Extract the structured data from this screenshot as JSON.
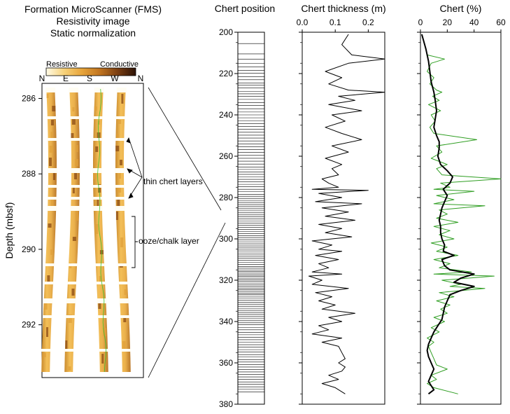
{
  "fms_panel": {
    "title_lines": [
      "Formation MicroScanner (FMS)",
      "Resistivity image",
      "Static normalization"
    ],
    "colorbar": {
      "left_label": "Resistive",
      "right_label": "Conductive",
      "colors": [
        "#fffbe6",
        "#f7d27a",
        "#e7a43a",
        "#c07420",
        "#7a3e12",
        "#2e1206"
      ]
    },
    "orientation_labels": [
      "N",
      "E",
      "S",
      "W",
      "N"
    ],
    "depth_ticks": [
      "286",
      "288",
      "290",
      "292"
    ],
    "ylabel": "Depth (mbsf)",
    "annotations": {
      "thin_chert": "thin chert layers",
      "ooze_chalk": "ooze/chalk layer"
    },
    "colors": {
      "pad_light": "#f5c35a",
      "pad_mid": "#e0a03a",
      "pad_dark": "#8a4a14",
      "bed_white": "#fffdf3",
      "trace": "#35c02a"
    }
  },
  "chart_data": [
    {
      "type": "table",
      "title": "Chert position",
      "ylim": [
        200,
        380
      ],
      "yticks": [
        200,
        220,
        240,
        260,
        280,
        300,
        320,
        340,
        360,
        380
      ],
      "positions": [
        200,
        205.5,
        210.5,
        213,
        215,
        216.8,
        218.4,
        219.9,
        221.5,
        223,
        224.5,
        225.6,
        227,
        228.6,
        229.8,
        231,
        232.5,
        234,
        235.5,
        237,
        238.6,
        240,
        241.4,
        242.8,
        244.2,
        245.6,
        247,
        248.4,
        249.8,
        251.2,
        252.6,
        254,
        255.4,
        256.8,
        258.2,
        259.6,
        261,
        262.4,
        263.8,
        265.2,
        266.4,
        267.6,
        268.8,
        270,
        271.2,
        272.4,
        273.6,
        274.8,
        276,
        277.2,
        278.4,
        279.4,
        280.4,
        281.4,
        282.4,
        283.4,
        284.4,
        285.4,
        286.4,
        287.4,
        288.4,
        289.4,
        290.4,
        291.4,
        292.4,
        293.4,
        294.4,
        295.4,
        296.4,
        297.4,
        298.4,
        299.4,
        300.4,
        301.4,
        302.4,
        303.4,
        304.4,
        305.4,
        306.4,
        307.4,
        308.4,
        309.4,
        310.4,
        311.4,
        312.4,
        313.4,
        314.2,
        315,
        315.8,
        316.6,
        317.4,
        318.2,
        319,
        319.8,
        320.6,
        321.4,
        322.2,
        323,
        323.8,
        324.6,
        325.4,
        326.2,
        327,
        327.8,
        328.6,
        329.6,
        330.6,
        331.6,
        332.6,
        333.6,
        334.6,
        335.6,
        336.6,
        337.6,
        338.6,
        339.6,
        340.6,
        341.6,
        342.8,
        344,
        345.2,
        346.4,
        347.6,
        348.8,
        350,
        351.2,
        352.4,
        353.6,
        354.8,
        356,
        357.2,
        358.4,
        359.6,
        360.8,
        362,
        363.2,
        364.4,
        365.6,
        366.8,
        368,
        369.2,
        370.4,
        371.6,
        372.8,
        374
      ]
    },
    {
      "type": "line",
      "title": "Chert thickness (m)",
      "xlim": [
        0,
        0.25
      ],
      "ylim": [
        200,
        380
      ],
      "xticks": [
        "0.0",
        "0.1",
        "0.2"
      ],
      "yticks": [
        200,
        220,
        240,
        260,
        280,
        300,
        320,
        340,
        360,
        380
      ],
      "series": [
        {
          "color": "#000000",
          "points": [
            [
              0.14,
              201
            ],
            [
              0.12,
              206
            ],
            [
              0.15,
              211
            ],
            [
              0.25,
              213
            ],
            [
              0.14,
              215
            ],
            [
              0.07,
              219
            ],
            [
              0.12,
              222
            ],
            [
              0.08,
              225
            ],
            [
              0.14,
              228
            ],
            [
              0.25,
              229
            ],
            [
              0.11,
              231
            ],
            [
              0.16,
              233
            ],
            [
              0.08,
              235
            ],
            [
              0.18,
              238
            ],
            [
              0.09,
              240
            ],
            [
              0.13,
              243
            ],
            [
              0.07,
              246
            ],
            [
              0.12,
              249
            ],
            [
              0.18,
              252
            ],
            [
              0.09,
              255
            ],
            [
              0.14,
              258
            ],
            [
              0.07,
              261
            ],
            [
              0.12,
              264
            ],
            [
              0.09,
              266
            ],
            [
              0.11,
              269
            ],
            [
              0.06,
              271
            ],
            [
              0.08,
              273
            ],
            [
              0.11,
              275
            ],
            [
              0.03,
              276
            ],
            [
              0.2,
              276.5
            ],
            [
              0.05,
              278
            ],
            [
              0.12,
              280
            ],
            [
              0.04,
              282
            ],
            [
              0.18,
              283
            ],
            [
              0.06,
              285
            ],
            [
              0.14,
              287
            ],
            [
              0.07,
              289
            ],
            [
              0.16,
              291
            ],
            [
              0.05,
              293
            ],
            [
              0.12,
              295
            ],
            [
              0.07,
              297
            ],
            [
              0.15,
              299
            ],
            [
              0.03,
              301
            ],
            [
              0.09,
              303
            ],
            [
              0.05,
              305
            ],
            [
              0.12,
              306
            ],
            [
              0.04,
              308
            ],
            [
              0.11,
              310
            ],
            [
              0.05,
              312
            ],
            [
              0.08,
              314
            ],
            [
              0.03,
              316
            ],
            [
              0.12,
              317
            ],
            [
              0.02,
              318
            ],
            [
              0.06,
              320
            ],
            [
              0.03,
              322
            ],
            [
              0.14,
              324
            ],
            [
              0.04,
              326
            ],
            [
              0.09,
              328
            ],
            [
              0.05,
              330
            ],
            [
              0.1,
              332
            ],
            [
              0.06,
              334
            ],
            [
              0.16,
              336
            ],
            [
              0.08,
              338
            ],
            [
              0.12,
              340
            ],
            [
              0.05,
              342
            ],
            [
              0.08,
              344
            ],
            [
              0.03,
              346
            ],
            [
              0.12,
              348
            ],
            [
              0.06,
              350
            ],
            [
              0.11,
              352
            ],
            [
              0.12,
              355
            ],
            [
              0.13,
              358
            ],
            [
              0.11,
              360
            ],
            [
              0.13,
              362
            ],
            [
              0.12,
              364
            ],
            [
              0.08,
              366
            ],
            [
              0.11,
              368
            ],
            [
              0.06,
              370
            ],
            [
              0.1,
              372
            ],
            [
              0.13,
              375
            ]
          ]
        }
      ]
    },
    {
      "type": "line",
      "title": "Chert (%)",
      "xlim": [
        0,
        60
      ],
      "ylim": [
        200,
        380
      ],
      "xticks": [
        "0",
        "20",
        "40",
        "60"
      ],
      "yticks": [
        200,
        220,
        240,
        260,
        280,
        300,
        320,
        340,
        360,
        380
      ],
      "series": [
        {
          "color": "#2f9e22",
          "points": [
            [
              1,
              201
            ],
            [
              3,
              206
            ],
            [
              5,
              211
            ],
            [
              18,
              213
            ],
            [
              8,
              215
            ],
            [
              5,
              219
            ],
            [
              10,
              222
            ],
            [
              7,
              225
            ],
            [
              12,
              228
            ],
            [
              16,
              229
            ],
            [
              9,
              231
            ],
            [
              14,
              233
            ],
            [
              6,
              235
            ],
            [
              15,
              238
            ],
            [
              8,
              240
            ],
            [
              11,
              243
            ],
            [
              7,
              246
            ],
            [
              10,
              249
            ],
            [
              42,
              252
            ],
            [
              12,
              255
            ],
            [
              16,
              258
            ],
            [
              8,
              261
            ],
            [
              20,
              264
            ],
            [
              12,
              266
            ],
            [
              16,
              269
            ],
            [
              60,
              271
            ],
            [
              15,
              273
            ],
            [
              22,
              275
            ],
            [
              10,
              276
            ],
            [
              40,
              277
            ],
            [
              12,
              279
            ],
            [
              25,
              281
            ],
            [
              10,
              283
            ],
            [
              48,
              284
            ],
            [
              14,
              286
            ],
            [
              20,
              288
            ],
            [
              12,
              290
            ],
            [
              28,
              292
            ],
            [
              10,
              294
            ],
            [
              22,
              296
            ],
            [
              14,
              298
            ],
            [
              25,
              300
            ],
            [
              8,
              302
            ],
            [
              20,
              304
            ],
            [
              12,
              306
            ],
            [
              28,
              308
            ],
            [
              10,
              310
            ],
            [
              22,
              312
            ],
            [
              14,
              314
            ],
            [
              38,
              316
            ],
            [
              10,
              317
            ],
            [
              55,
              318
            ],
            [
              16,
              320
            ],
            [
              30,
              322
            ],
            [
              22,
              323
            ],
            [
              48,
              324
            ],
            [
              14,
              326
            ],
            [
              25,
              328
            ],
            [
              12,
              330
            ],
            [
              22,
              332
            ],
            [
              15,
              334
            ],
            [
              20,
              336
            ],
            [
              10,
              338
            ],
            [
              18,
              340
            ],
            [
              8,
              343
            ],
            [
              14,
              345
            ],
            [
              5,
              348
            ],
            [
              10,
              350
            ],
            [
              6,
              352
            ],
            [
              8,
              355
            ],
            [
              10,
              358
            ],
            [
              12,
              361
            ],
            [
              20,
              363
            ],
            [
              8,
              366
            ],
            [
              12,
              368
            ],
            [
              5,
              370
            ],
            [
              10,
              372
            ],
            [
              28,
              375
            ]
          ]
        },
        {
          "color": "#000000",
          "points": [
            [
              1,
              201
            ],
            [
              4,
              208
            ],
            [
              6,
              214
            ],
            [
              7,
              219
            ],
            [
              8,
              224
            ],
            [
              10,
              229
            ],
            [
              11,
              233
            ],
            [
              12,
              238
            ],
            [
              11,
              242
            ],
            [
              10,
              246
            ],
            [
              12,
              250
            ],
            [
              14,
              253
            ],
            [
              14,
              256
            ],
            [
              13,
              260
            ],
            [
              15,
              264
            ],
            [
              20,
              267
            ],
            [
              24,
              270
            ],
            [
              22,
              273
            ],
            [
              17,
              276
            ],
            [
              20,
              279
            ],
            [
              18,
              282
            ],
            [
              16,
              285
            ],
            [
              15,
              288
            ],
            [
              14,
              291
            ],
            [
              15,
              294
            ],
            [
              15,
              297
            ],
            [
              16,
              300
            ],
            [
              18,
              303
            ],
            [
              17,
              306
            ],
            [
              25,
              308
            ],
            [
              16,
              310
            ],
            [
              18,
              313
            ],
            [
              22,
              315
            ],
            [
              40,
              317
            ],
            [
              30,
              319
            ],
            [
              25,
              321
            ],
            [
              40,
              323
            ],
            [
              30,
              325
            ],
            [
              22,
              327
            ],
            [
              20,
              330
            ],
            [
              18,
              333
            ],
            [
              17,
              336
            ],
            [
              16,
              339
            ],
            [
              13,
              342
            ],
            [
              10,
              345
            ],
            [
              8,
              348
            ],
            [
              6,
              351
            ],
            [
              5,
              354
            ],
            [
              6,
              357
            ],
            [
              8,
              360
            ],
            [
              10,
              363
            ],
            [
              8,
              366
            ],
            [
              6,
              369
            ],
            [
              8,
              371
            ],
            [
              10,
              373
            ],
            [
              6,
              375
            ]
          ]
        }
      ]
    }
  ]
}
